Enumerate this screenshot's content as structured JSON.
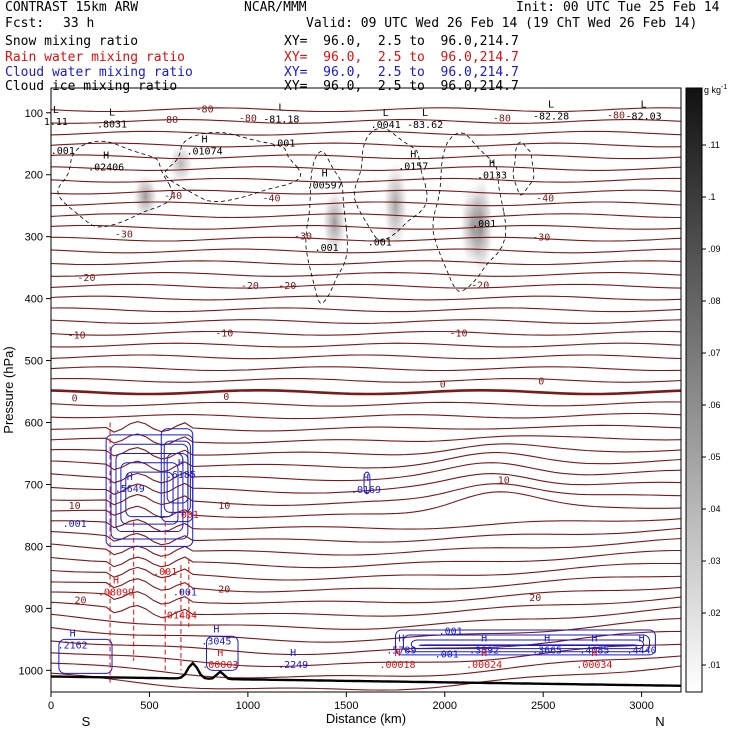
{
  "header": {
    "model": "CONTRAST 15km ARW",
    "org": "NCAR/MMM",
    "init": "Init: 00 UTC Tue 25 Feb 14",
    "fcst_label": "Fcst:",
    "fcst_value": "33 h",
    "valid": "Valid: 09 UTC Wed 26 Feb 14 (19 ChT Wed 26 Feb 14)",
    "fields": [
      {
        "name": "Snow mixing ratio",
        "xy": "XY=  96.0,  2.5 to  96.0,214.7",
        "color": "#000000"
      },
      {
        "name": "Rain water mixing ratio",
        "xy": "XY=  96.0,  2.5 to  96.0,214.7",
        "color": "#dd1111"
      },
      {
        "name": "Cloud water mixing ratio",
        "xy": "XY=  96.0,  2.5 to  96.0,214.7",
        "color": "#1a1acc"
      },
      {
        "name": "Cloud ice mixing ratio",
        "xy": "XY=  96.0,  2.5 to  96.0,214.7",
        "color": "#000000"
      }
    ]
  },
  "chart_data": {
    "type": "contour",
    "xlabel": "Distance (km)",
    "ylabel": "Pressure (hPa)",
    "x_ticks": [
      0,
      500,
      1000,
      1500,
      2000,
      2500,
      3000
    ],
    "xlim": [
      0,
      3200
    ],
    "x_ends": {
      "left": "S",
      "right": "N"
    },
    "y_ticks": [
      100,
      200,
      300,
      400,
      500,
      600,
      700,
      800,
      900,
      1000
    ],
    "ylim": [
      60,
      1035
    ],
    "colorbar": {
      "unit": "g kg",
      "unit_exp": "-1",
      "ticks": [
        ".11",
        ".1",
        ".09",
        ".08",
        ".07",
        ".06",
        ".05",
        ".04",
        ".03",
        ".02",
        ".01"
      ]
    },
    "temperature_labels": [
      {
        "text": "-80",
        "x": 780,
        "p": 93
      },
      {
        "text": "-80",
        "x": 1000,
        "p": 108
      },
      {
        "text": "-80",
        "x": 600,
        "p": 110
      },
      {
        "text": "-80",
        "x": 2870,
        "p": 103
      },
      {
        "text": "-80",
        "x": 2290,
        "p": 108
      },
      {
        "text": "-40",
        "x": 620,
        "p": 233
      },
      {
        "text": "-40",
        "x": 1120,
        "p": 237
      },
      {
        "text": "-40",
        "x": 2510,
        "p": 237
      },
      {
        "text": "-30",
        "x": 370,
        "p": 295
      },
      {
        "text": "-30",
        "x": 1280,
        "p": 298
      },
      {
        "text": "-30",
        "x": 2490,
        "p": 300
      },
      {
        "text": "-20",
        "x": 180,
        "p": 365
      },
      {
        "text": "-20",
        "x": 1010,
        "p": 378
      },
      {
        "text": "-20",
        "x": 1200,
        "p": 378
      },
      {
        "text": "-20",
        "x": 2180,
        "p": 377
      },
      {
        "text": "-10",
        "x": 130,
        "p": 458
      },
      {
        "text": "-10",
        "x": 880,
        "p": 455
      },
      {
        "text": "-10",
        "x": 2070,
        "p": 455
      },
      {
        "text": "0",
        "x": 120,
        "p": 560
      },
      {
        "text": "0",
        "x": 890,
        "p": 557
      },
      {
        "text": "0",
        "x": 1990,
        "p": 537
      },
      {
        "text": "0",
        "x": 2490,
        "p": 532
      },
      {
        "text": "10",
        "x": 120,
        "p": 733
      },
      {
        "text": "10",
        "x": 880,
        "p": 733
      },
      {
        "text": "10",
        "x": 2300,
        "p": 692
      },
      {
        "text": "20",
        "x": 150,
        "p": 886
      },
      {
        "text": "20",
        "x": 880,
        "p": 868
      },
      {
        "text": "20",
        "x": 2460,
        "p": 882
      }
    ],
    "maxima_labels": [
      {
        "mark": "L",
        "text": "1.11",
        "x": 25,
        "p": 113,
        "color": "black"
      },
      {
        "mark": "L",
        "text": ".8031",
        "x": 310,
        "p": 117,
        "color": "black"
      },
      {
        "mark": "L",
        "text": "-81.18",
        "x": 1170,
        "p": 109,
        "color": "black"
      },
      {
        "mark": "L",
        "text": ".0041",
        "x": 1700,
        "p": 118,
        "color": "black"
      },
      {
        "mark": "L",
        "text": "-83.62",
        "x": 1900,
        "p": 118,
        "color": "black"
      },
      {
        "mark": "L",
        "text": "-82.28",
        "x": 2540,
        "p": 104,
        "color": "black"
      },
      {
        "mark": "L",
        "text": "-82.03",
        "x": 3010,
        "p": 104,
        "color": "black"
      },
      {
        "mark": "H",
        "text": ".02406",
        "x": 280,
        "p": 187,
        "color": "black"
      },
      {
        "mark": "H",
        "text": ".01074",
        "x": 780,
        "p": 161,
        "color": "black"
      },
      {
        "mark": "H",
        "text": ".00597",
        "x": 1390,
        "p": 216,
        "color": "black"
      },
      {
        "mark": "H",
        "text": ".0157",
        "x": 1840,
        "p": 185,
        "color": "black"
      },
      {
        "mark": "H",
        "text": ".0133",
        "x": 2240,
        "p": 200,
        "color": "black"
      },
      {
        "mark": "",
        "text": ".001",
        "x": 60,
        "p": 160,
        "color": "black"
      },
      {
        "mark": "",
        "text": ".001",
        "x": 1180,
        "p": 148,
        "color": "black"
      },
      {
        "mark": "",
        "text": ".001",
        "x": 1400,
        "p": 317,
        "color": "black"
      },
      {
        "mark": "",
        "text": ".001",
        "x": 1670,
        "p": 308,
        "color": "black"
      },
      {
        "mark": "",
        "text": ".001",
        "x": 2200,
        "p": 278,
        "color": "black"
      },
      {
        "mark": "H",
        "text": ".5649",
        "x": 400,
        "p": 706,
        "color": "blue"
      },
      {
        "mark": "H",
        "text": ".6185",
        "x": 660,
        "p": 683,
        "color": "blue"
      },
      {
        "mark": "H",
        "text": ".0169",
        "x": 1600,
        "p": 707,
        "color": "blue"
      },
      {
        "mark": "",
        "text": ".001",
        "x": 120,
        "p": 762,
        "color": "blue"
      },
      {
        "mark": "",
        "text": ".001",
        "x": 690,
        "p": 748,
        "color": "red"
      },
      {
        "mark": "",
        "text": ".001",
        "x": 580,
        "p": 840,
        "color": "red"
      },
      {
        "mark": "H",
        "text": ".08099",
        "x": 330,
        "p": 873,
        "color": "red"
      },
      {
        "mark": "",
        "text": ".001",
        "x": 680,
        "p": 873,
        "color": "blue"
      },
      {
        "mark": "",
        "text": ".01484",
        "x": 650,
        "p": 910,
        "color": "red"
      },
      {
        "mark": "H",
        "text": ".2162",
        "x": 110,
        "p": 958,
        "color": "blue"
      },
      {
        "mark": "H",
        "text": ".3045",
        "x": 840,
        "p": 952,
        "color": "blue"
      },
      {
        "mark": "H",
        "text": ".00003",
        "x": 860,
        "p": 990,
        "color": "red"
      },
      {
        "mark": "H",
        "text": ".2249",
        "x": 1230,
        "p": 990,
        "color": "blue"
      },
      {
        "mark": "H",
        "text": ".5789",
        "x": 1780,
        "p": 966,
        "color": "blue"
      },
      {
        "mark": "H",
        "text": ".00018",
        "x": 1760,
        "p": 990,
        "color": "red"
      },
      {
        "mark": "",
        "text": ".001",
        "x": 2030,
        "p": 936,
        "color": "blue"
      },
      {
        "mark": "",
        "text": ".001",
        "x": 2010,
        "p": 973,
        "color": "blue"
      },
      {
        "mark": "H",
        "text": ".3392",
        "x": 2200,
        "p": 966,
        "color": "blue"
      },
      {
        "mark": "H",
        "text": ".00024",
        "x": 2200,
        "p": 990,
        "color": "red"
      },
      {
        "mark": "H",
        "text": ".3665",
        "x": 2520,
        "p": 966,
        "color": "blue"
      },
      {
        "mark": "H",
        "text": ".4085",
        "x": 2760,
        "p": 966,
        "color": "blue"
      },
      {
        "mark": "H",
        "text": ".00034",
        "x": 2760,
        "p": 990,
        "color": "red"
      },
      {
        "mark": "H",
        "text": ".4440",
        "x": 3000,
        "p": 966,
        "color": "blue"
      }
    ],
    "snow_shading": [
      {
        "x": 480,
        "p_top": 200,
        "p_bot": 270,
        "strength": 0.55
      },
      {
        "x": 660,
        "p_top": 150,
        "p_bot": 215,
        "strength": 0.4
      },
      {
        "x": 1440,
        "p_top": 225,
        "p_bot": 330,
        "strength": 0.55
      },
      {
        "x": 1750,
        "p_top": 180,
        "p_bot": 320,
        "strength": 0.5
      },
      {
        "x": 2140,
        "p_top": 215,
        "p_bot": 350,
        "strength": 0.5
      },
      {
        "x": 2185,
        "p_top": 205,
        "p_bot": 360,
        "strength": 0.6
      }
    ]
  }
}
